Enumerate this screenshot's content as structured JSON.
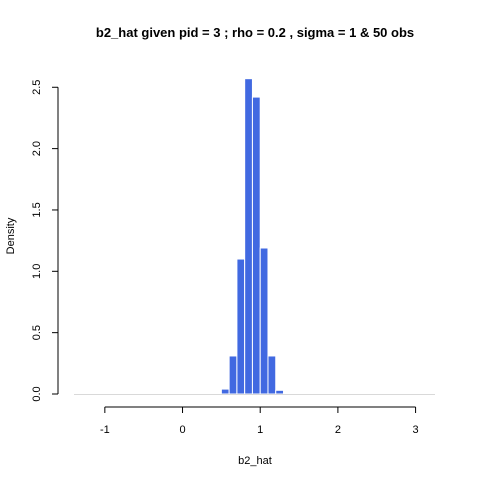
{
  "chart_data": {
    "type": "bar",
    "title": "b2_hat given pid =  3 ; rho = 0.2 , sigma = 1 & 50 obs",
    "xlabel": "b2_hat",
    "ylabel": "Density",
    "xlim": [
      -1.5,
      3.25
    ],
    "ylim": [
      0,
      2.6
    ],
    "x_ticks": [
      -1,
      0,
      1,
      2,
      3
    ],
    "x_tick_labels": [
      "-1",
      "0",
      "1",
      "2",
      "3"
    ],
    "y_ticks": [
      0,
      0.5,
      1,
      1.5,
      2,
      2.5
    ],
    "y_tick_labels": [
      "0.0",
      "0.5",
      "1.0",
      "1.5",
      "2.0",
      "2.5"
    ],
    "bin_edges": [
      0.5,
      0.6,
      0.7,
      0.8,
      0.9,
      1.0,
      1.1,
      1.2,
      1.3,
      1.4,
      1.5
    ],
    "values": [
      0.04,
      0.31,
      1.1,
      2.57,
      2.42,
      1.19,
      0.31,
      0.03,
      0,
      0
    ],
    "bar_color": "#4169E1",
    "bar_border_color": "#ffffff",
    "baseline_color": "#d9d9d9",
    "grid": false,
    "legend": "none"
  }
}
